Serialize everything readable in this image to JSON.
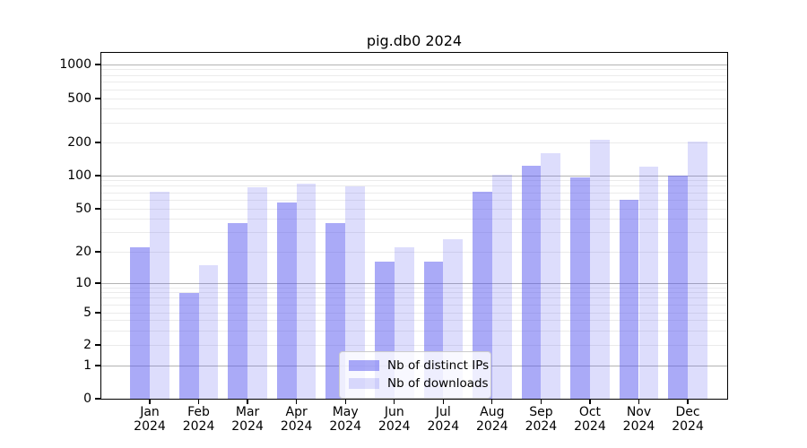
{
  "chart_data": {
    "type": "bar",
    "title": "pig.db0 2024",
    "categories": [
      "Jan",
      "Feb",
      "Mar",
      "Apr",
      "May",
      "Jun",
      "Jul",
      "Aug",
      "Sep",
      "Oct",
      "Nov",
      "Dec"
    ],
    "year_label": "2024",
    "series": [
      {
        "name": "Nb of distinct IPs",
        "color": "rgba(85,85,240,0.5)",
        "values": [
          22,
          8,
          37,
          57,
          37,
          16,
          16,
          72,
          124,
          96,
          60,
          100
        ]
      },
      {
        "name": "Nb of downloads",
        "color": "rgba(85,85,240,0.2)",
        "values": [
          72,
          15,
          78,
          85,
          80,
          22,
          26,
          102,
          160,
          211,
          120,
          204
        ]
      }
    ],
    "y_ticks": [
      0,
      1,
      2,
      5,
      10,
      20,
      50,
      100,
      200,
      500,
      1000
    ],
    "y_scale": "symlog",
    "ylim": [
      0,
      1000
    ],
    "xlabel": "",
    "ylabel": "",
    "grid": true,
    "legend_position": "lower-center",
    "colors": {
      "grid_major": "#b3b3b3",
      "grid_minor": "#ebebeb",
      "axis": "#000000",
      "background": "#ffffff"
    }
  }
}
